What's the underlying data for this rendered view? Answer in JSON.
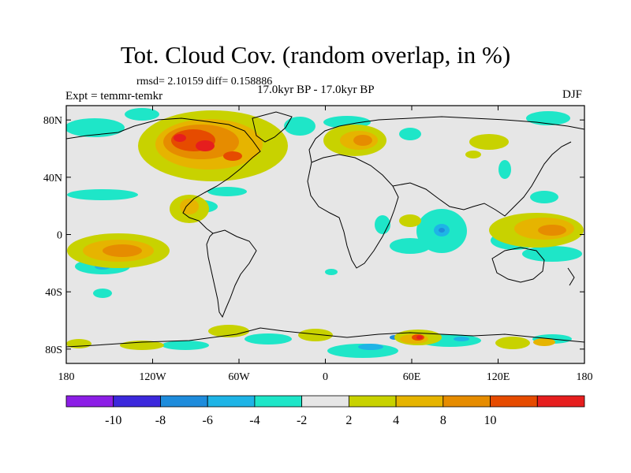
{
  "title": "Tot. Cloud Cov. (random overlap, in %)",
  "stats": "rmsd= 2.10159 diff= 0.158886",
  "left_label": "Expt = temmr-temkr",
  "center_label": "17.0kyr BP - 17.0kyr BP",
  "right_label": "DJF",
  "lon_ticks": [
    "180",
    "120W",
    "60W",
    "0",
    "60E",
    "120E",
    "180"
  ],
  "lat_ticks": [
    "80N",
    "40N",
    "0",
    "40S",
    "80S"
  ],
  "colorbar": {
    "colors": [
      "#8c1ee6",
      "#3c28dc",
      "#1e8cdc",
      "#1eb4e6",
      "#1ee6c8",
      "#e6e6e6",
      "#c8d200",
      "#e6b400",
      "#e68c00",
      "#e64b00",
      "#e61e1e"
    ],
    "labels": [
      "-10",
      "-8",
      "-6",
      "-4",
      "-2",
      "2",
      "4",
      "8",
      "10"
    ]
  }
}
